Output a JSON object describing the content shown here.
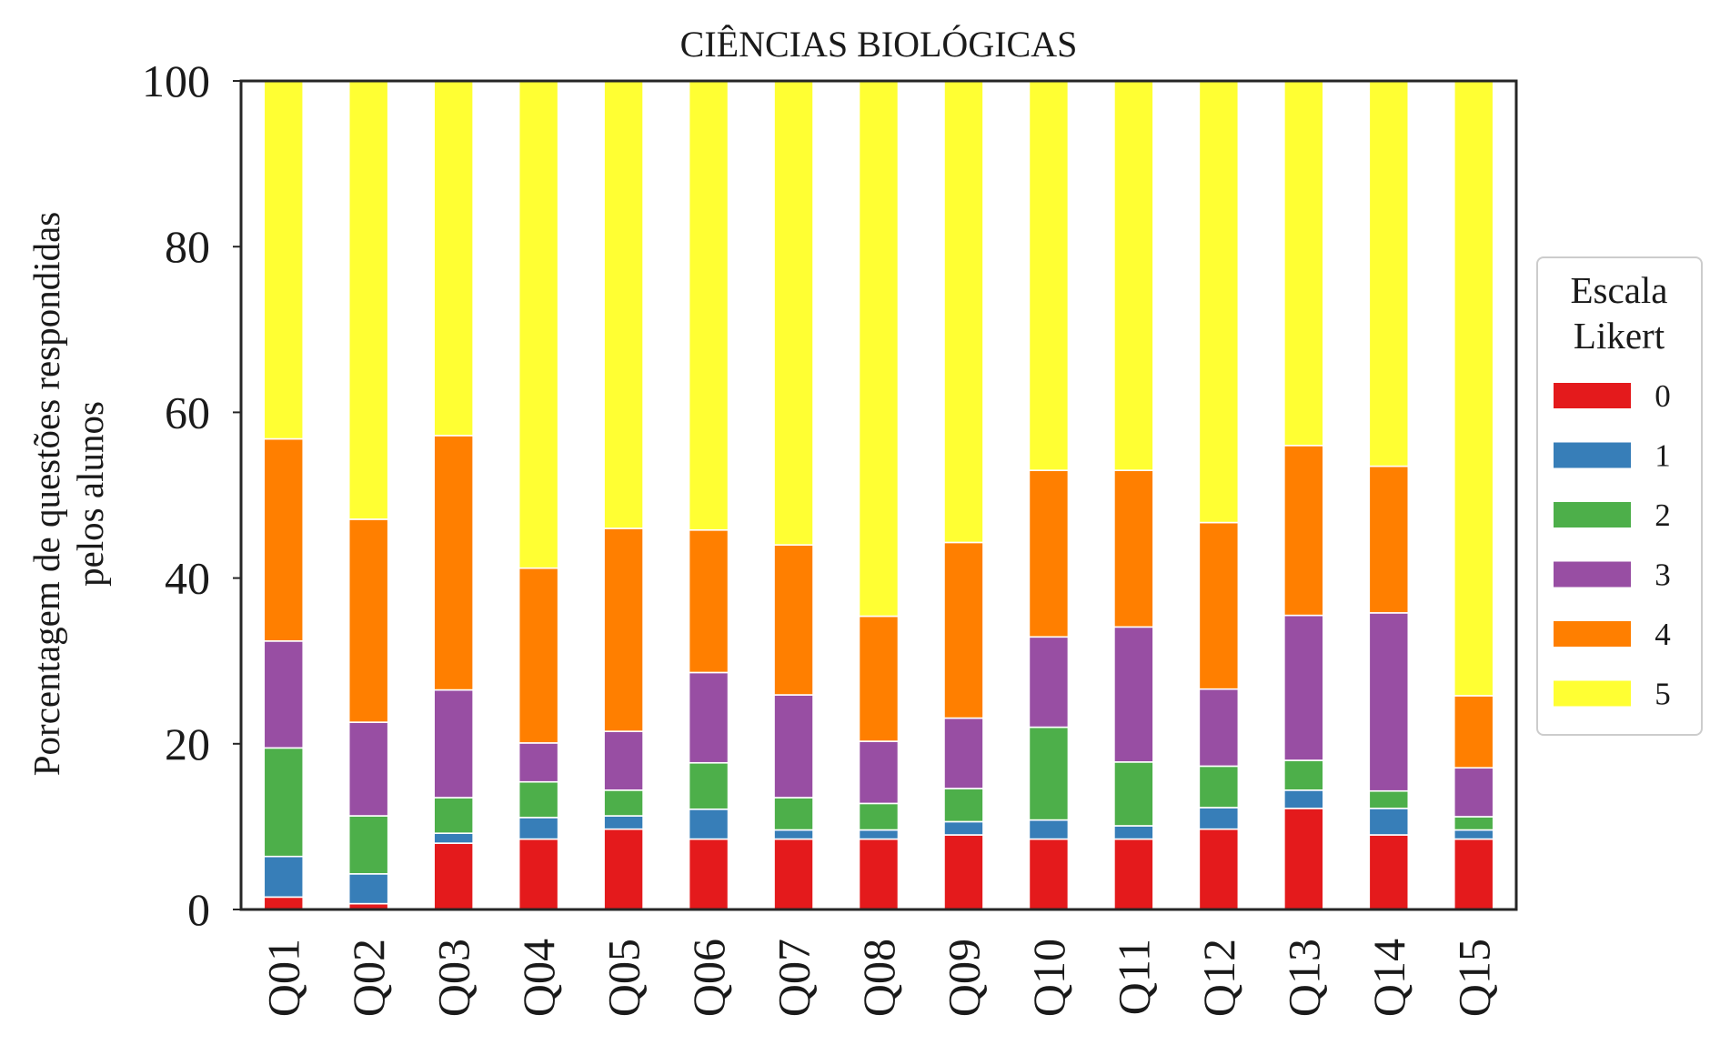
{
  "chart_data": {
    "type": "bar",
    "stacked": true,
    "title": "CIÊNCIAS BIOLÓGICAS",
    "ylabel_lines": [
      "Porcentagem de questões respondidas",
      "pelos alunos"
    ],
    "xlabel": "",
    "ylim": [
      0,
      100
    ],
    "yticks": [
      0,
      20,
      40,
      60,
      80,
      100
    ],
    "grid": false,
    "legend": {
      "title_lines": [
        "Escala",
        "Likert"
      ],
      "placement": "right"
    },
    "categories": [
      "Q01",
      "Q02",
      "Q03",
      "Q04",
      "Q05",
      "Q06",
      "Q07",
      "Q08",
      "Q09",
      "Q10",
      "Q11",
      "Q12",
      "Q13",
      "Q14",
      "Q15"
    ],
    "series": [
      {
        "name": "0",
        "color": "#e41a1c",
        "values": [
          1.5,
          0.7,
          8.0,
          8.5,
          9.7,
          8.5,
          8.5,
          8.5,
          9.0,
          8.5,
          8.5,
          9.7,
          12.2,
          9.0,
          8.5
        ]
      },
      {
        "name": "1",
        "color": "#377eb8",
        "values": [
          4.9,
          3.6,
          1.2,
          2.6,
          1.6,
          3.6,
          1.1,
          1.1,
          1.6,
          2.3,
          1.6,
          2.6,
          2.2,
          3.2,
          1.1
        ]
      },
      {
        "name": "2",
        "color": "#4daf4a",
        "values": [
          13.1,
          7.0,
          4.3,
          4.3,
          3.1,
          5.6,
          3.9,
          3.2,
          4.0,
          11.2,
          7.7,
          5.0,
          3.6,
          2.1,
          1.6
        ]
      },
      {
        "name": "3",
        "color": "#984ea3",
        "values": [
          12.9,
          11.3,
          13.0,
          4.7,
          7.1,
          10.9,
          12.4,
          7.5,
          8.5,
          10.9,
          16.3,
          9.3,
          17.5,
          21.5,
          5.9
        ]
      },
      {
        "name": "4",
        "color": "#ff7f00",
        "values": [
          24.4,
          24.5,
          30.7,
          21.1,
          24.5,
          17.2,
          18.1,
          15.1,
          21.2,
          20.1,
          18.9,
          20.1,
          20.5,
          17.7,
          8.7
        ]
      },
      {
        "name": "5",
        "color": "#ffff33",
        "values": [
          43.2,
          52.9,
          42.8,
          58.8,
          54.0,
          54.2,
          56.0,
          64.6,
          55.7,
          47.0,
          47.0,
          53.3,
          44.0,
          46.5,
          74.2
        ]
      }
    ]
  }
}
